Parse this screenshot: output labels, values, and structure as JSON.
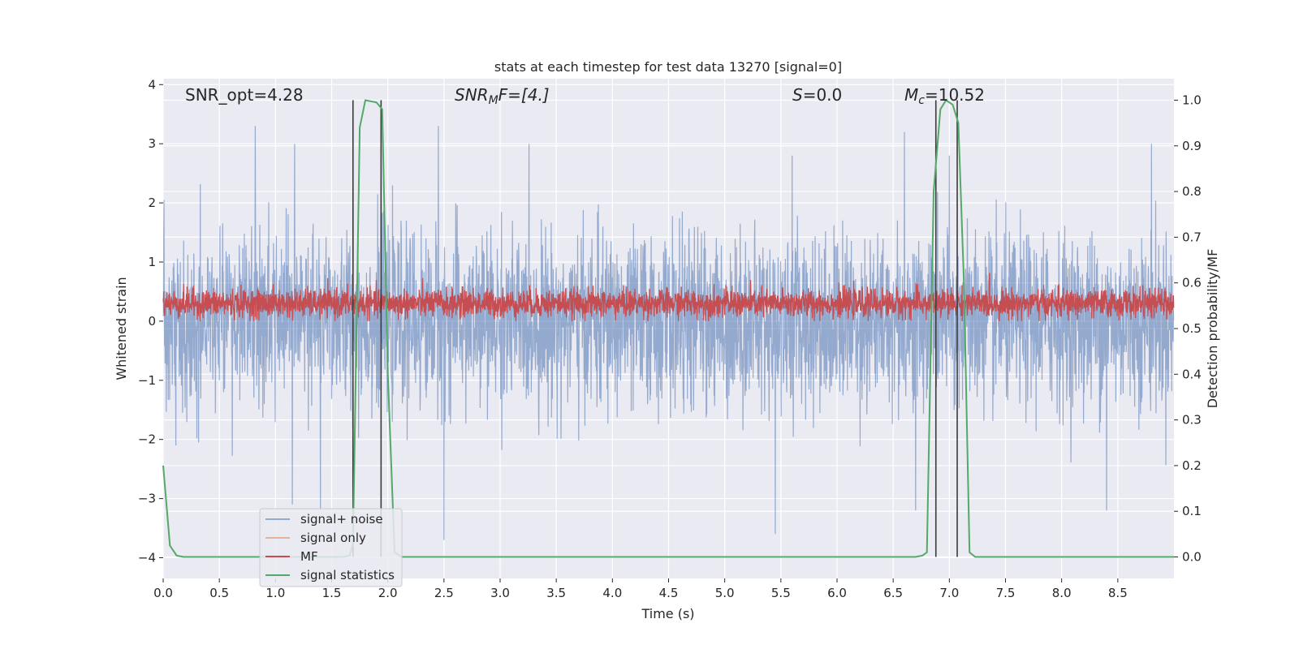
{
  "chart_data": {
    "type": "line",
    "title": "stats at each timestep for test data 13270 [signal=0]",
    "xlabel": "Time (s)",
    "ylabel": "Whitened strain",
    "ylabel_right": "Detection probability/MF",
    "xlim": [
      0.0,
      9.0
    ],
    "ylim": [
      -4.35,
      4.1
    ],
    "ylim_right": [
      -0.047,
      1.047
    ],
    "x_ticks": [
      "0.0",
      "0.5",
      "1.0",
      "1.5",
      "2.0",
      "2.5",
      "3.0",
      "3.5",
      "4.0",
      "4.5",
      "5.0",
      "5.5",
      "6.0",
      "6.5",
      "7.0",
      "7.5",
      "8.0",
      "8.5"
    ],
    "x_tick_values": [
      0.0,
      0.5,
      1.0,
      1.5,
      2.0,
      2.5,
      3.0,
      3.5,
      4.0,
      4.5,
      5.0,
      5.5,
      6.0,
      6.5,
      7.0,
      7.5,
      8.0,
      8.5
    ],
    "y_ticks": [
      "4",
      "3",
      "2",
      "1",
      "0",
      "−1",
      "−2",
      "−3",
      "−4"
    ],
    "y_tick_values": [
      4,
      3,
      2,
      1,
      0,
      -1,
      -2,
      -3,
      -4
    ],
    "y_right_ticks": [
      "1.0",
      "0.9",
      "0.8",
      "0.7",
      "0.6",
      "0.5",
      "0.4",
      "0.3",
      "0.2",
      "0.1",
      "0.0"
    ],
    "y_right_tick_values": [
      1.0,
      0.9,
      0.8,
      0.7,
      0.6,
      0.5,
      0.4,
      0.3,
      0.2,
      0.1,
      0.0
    ],
    "grid": true,
    "legend_position": "lower-left",
    "annotations": {
      "snr_opt": "SNR_opt=4.28",
      "snr_mf_main": "SNR",
      "snr_mf_sub": "M",
      "snr_mf_rest": "F=[4.]",
      "s_main": "S",
      "s_rest": "=0.0",
      "mc_main": "M",
      "mc_sub": "c",
      "mc_rest": "=10.52"
    },
    "vertical_lines_x": [
      1.69,
      1.94,
      6.88,
      7.07
    ],
    "series": [
      {
        "name": "signal+ noise",
        "color": "#4c72b0",
        "axis": "left",
        "sample_rate": 400,
        "amplitude_envelope": [
          -1.75,
          1.75
        ],
        "peaks": [
          {
            "x": 0.82,
            "y": 3.3
          },
          {
            "x": 1.17,
            "y": 3.0
          },
          {
            "x": 1.69,
            "y": 3.7
          },
          {
            "x": 1.94,
            "y": 3.4
          },
          {
            "x": 2.45,
            "y": 3.3
          },
          {
            "x": 5.6,
            "y": 2.8
          },
          {
            "x": 6.6,
            "y": 3.2
          },
          {
            "x": 7.0,
            "y": 2.8
          },
          {
            "x": 8.8,
            "y": 3.0
          },
          {
            "x": 2.5,
            "y": -3.7
          },
          {
            "x": 1.4,
            "y": -3.2
          },
          {
            "x": 5.45,
            "y": -3.6
          },
          {
            "x": 6.7,
            "y": -3.2
          },
          {
            "x": 8.4,
            "y": -3.2
          },
          {
            "x": 1.15,
            "y": -3.1
          }
        ]
      },
      {
        "name": "signal only",
        "color": "#dd8452",
        "axis": "left",
        "values": []
      },
      {
        "name": "MF",
        "color": "#c44e52",
        "axis": "left",
        "sample_rate": 400,
        "band": [
          0.05,
          0.55
        ],
        "max": 1.0
      },
      {
        "name": "signal statistics",
        "color": "#55a868",
        "axis": "right",
        "x": [
          0.0,
          0.06,
          0.12,
          0.18,
          0.24,
          1.6,
          1.66,
          1.69,
          1.75,
          1.8,
          1.9,
          1.95,
          2.0,
          2.06,
          2.12,
          2.2,
          6.7,
          6.76,
          6.8,
          6.86,
          6.92,
          6.97,
          7.03,
          7.08,
          7.13,
          7.18,
          7.23,
          7.3,
          9.0
        ],
        "y": [
          0.2,
          0.025,
          0.003,
          0.0,
          0.0,
          0.0,
          0.003,
          0.03,
          0.94,
          1.0,
          0.995,
          0.98,
          0.4,
          0.01,
          0.0,
          0.0,
          0.0,
          0.003,
          0.01,
          0.8,
          0.98,
          1.0,
          0.99,
          0.95,
          0.6,
          0.01,
          0.0,
          0.0,
          0.0
        ]
      }
    ]
  }
}
